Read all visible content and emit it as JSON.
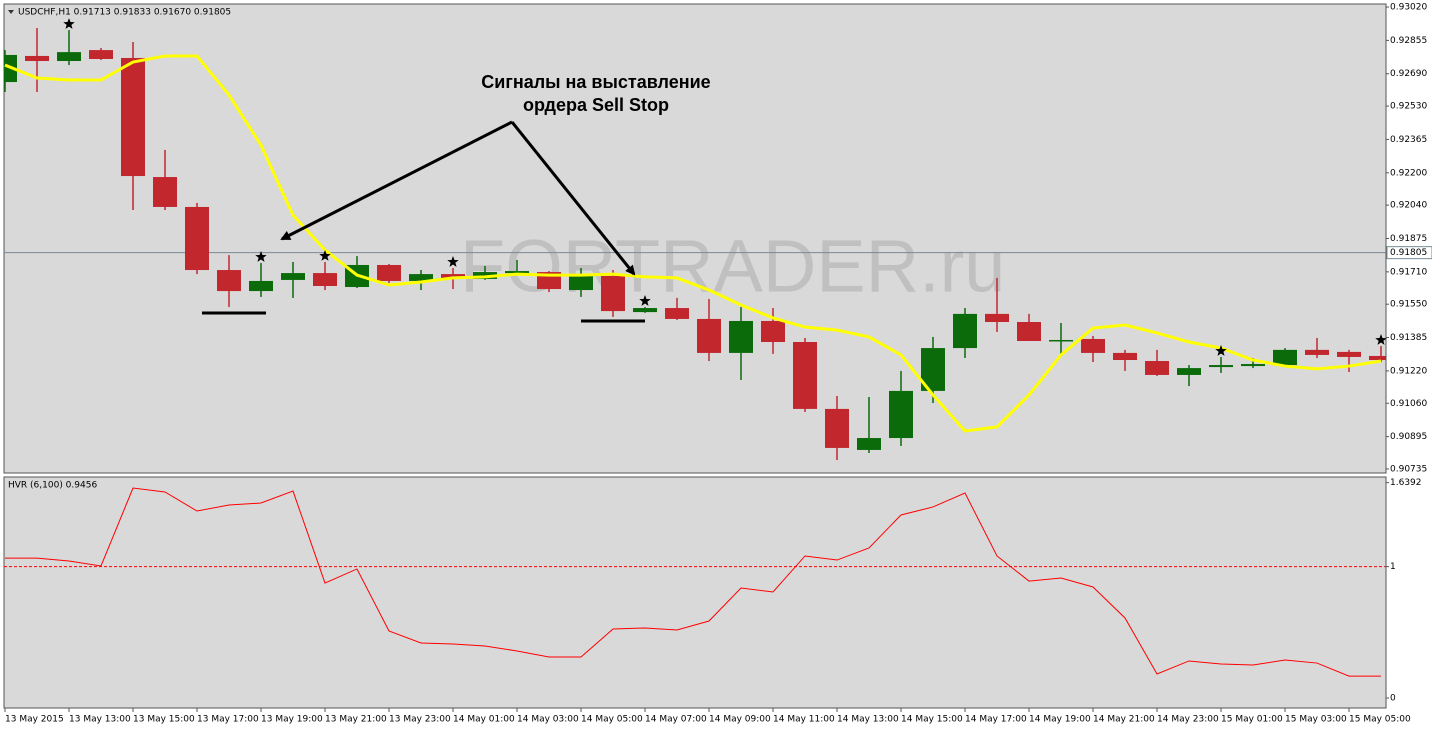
{
  "chart_data": [
    {
      "type": "candlestick",
      "title": "USDCHF,H1  0.91713 0.91833 0.91670 0.91805",
      "watermark": "FORTRADER.ru",
      "annotation": [
        "Сигналы на выставление",
        "ордера Sell Stop"
      ],
      "categories": [
        "13 May 2015",
        null,
        "13 May 13:00",
        null,
        "13 May 15:00",
        null,
        "13 May 17:00",
        null,
        "13 May 19:00",
        null,
        "13 May 21:00",
        null,
        "13 May 23:00",
        null,
        "14 May 01:00",
        null,
        "14 May 03:00",
        null,
        "14 May 05:00",
        null,
        "14 May 07:00",
        null,
        "14 May 09:00",
        null,
        "14 May 11:00",
        null,
        "14 May 13:00",
        null,
        "14 May 15:00",
        null,
        "14 May 17:00",
        null,
        "14 May 19:00",
        null,
        "14 May 21:00",
        null,
        "14 May 23:00",
        null,
        "15 May 01:00",
        null,
        "15 May 03:00",
        null,
        "15 May 05:00",
        null
      ],
      "open": [
        0.92649,
        0.92778,
        0.92753,
        0.92807,
        0.92768,
        0.92179,
        0.92031,
        0.91719,
        0.91615,
        0.9167,
        0.91704,
        0.91635,
        0.91744,
        0.91665,
        0.91699,
        0.91675,
        0.91704,
        0.91709,
        0.9162,
        0.9169,
        0.91511,
        0.91531,
        0.91477,
        0.91309,
        0.91467,
        0.91363,
        0.91032,
        0.90829,
        0.90888,
        0.91121,
        0.91333,
        0.91502,
        0.91462,
        0.91368,
        0.91378,
        0.91309,
        0.91269,
        0.912,
        0.91239,
        0.91244,
        0.91249,
        0.91324,
        0.91314,
        0.91294
      ],
      "high": [
        0.92807,
        0.92916,
        0.92906,
        0.92817,
        0.92847,
        0.92313,
        0.92051,
        0.91793,
        0.91754,
        0.91759,
        0.91759,
        0.91788,
        0.91749,
        0.91719,
        0.91729,
        0.91739,
        0.91769,
        0.91714,
        0.91729,
        0.91719,
        0.91536,
        0.91581,
        0.91576,
        0.91536,
        0.91531,
        0.91383,
        0.91096,
        0.91091,
        0.9122,
        0.91388,
        0.91531,
        0.9168,
        0.91502,
        0.91457,
        0.91393,
        0.91324,
        0.91324,
        0.91249,
        0.91289,
        0.91284,
        0.91333,
        0.91383,
        0.91324,
        0.91343
      ],
      "low": [
        0.926,
        0.926,
        0.92733,
        0.92758,
        0.92016,
        0.92016,
        0.91699,
        0.91536,
        0.91586,
        0.91581,
        0.9162,
        0.9163,
        0.91655,
        0.9162,
        0.91625,
        0.9167,
        0.91694,
        0.9161,
        0.91586,
        0.91487,
        0.91507,
        0.91472,
        0.91269,
        0.91175,
        0.91304,
        0.91017,
        0.90779,
        0.90814,
        0.90849,
        0.91061,
        0.91284,
        0.91413,
        0.91368,
        0.91299,
        0.91264,
        0.9122,
        0.91195,
        0.91145,
        0.9121,
        0.91234,
        0.91239,
        0.91284,
        0.91215,
        0.91264
      ],
      "close": [
        0.92783,
        0.92753,
        0.92797,
        0.92763,
        0.92184,
        0.92031,
        0.91719,
        0.91615,
        0.91665,
        0.91704,
        0.9164,
        0.91744,
        0.91665,
        0.91699,
        0.91675,
        0.91709,
        0.91714,
        0.91625,
        0.9169,
        0.91516,
        0.91531,
        0.91477,
        0.91309,
        0.91467,
        0.91363,
        0.91032,
        0.90839,
        0.90888,
        0.91121,
        0.91333,
        0.91502,
        0.91462,
        0.91368,
        0.91373,
        0.91309,
        0.91274,
        0.912,
        0.91234,
        0.91249,
        0.91254,
        0.91324,
        0.91299,
        0.91289,
        0.91274
      ],
      "up_color": "#0b6b0b",
      "down_color": "#c1272d",
      "ma": {
        "color": "#ffff00",
        "values": [
          0.92733,
          0.92669,
          0.92659,
          0.92659,
          0.92748,
          0.92778,
          0.92778,
          0.92585,
          0.92337,
          0.91991,
          0.91818,
          0.91694,
          0.91645,
          0.9166,
          0.9168,
          0.91685,
          0.91699,
          0.91694,
          0.91694,
          0.91699,
          0.91685,
          0.9168,
          0.9162,
          0.91546,
          0.91482,
          0.91437,
          0.91422,
          0.91388,
          0.91299,
          0.91101,
          0.90923,
          0.90943,
          0.91101,
          0.91299,
          0.91432,
          0.91447,
          0.91408,
          0.91363,
          0.91333,
          0.91274,
          0.91244,
          0.9123,
          0.91244,
          0.91269
        ]
      },
      "signals": [
        2,
        8,
        10,
        14,
        20,
        38,
        43
      ],
      "last_price": 0.91805,
      "ylim": [
        0.90715,
        0.93035
      ],
      "yticks": [
        {
          "value": 0.9302,
          "label": "0.93020"
        },
        0.92855,
        {
          "value": 0.9269,
          "label": "0.92690"
        },
        {
          "value": 0.9253,
          "label": "0.92530"
        },
        0.92365,
        {
          "value": 0.922,
          "label": "0.92200"
        },
        {
          "value": 0.9204,
          "label": "0.92040"
        },
        0.91875,
        {
          "value": 0.9171,
          "label": "0.91710"
        },
        {
          "value": 0.9155,
          "label": "0.91550"
        },
        0.91385,
        {
          "value": 0.9122,
          "label": "0.91220"
        },
        {
          "value": 0.9106,
          "label": "0.91060"
        },
        0.90895,
        0.90735
      ]
    },
    {
      "type": "line",
      "title": "HVR (6,100) 0.9456",
      "series": [
        {
          "color": "#ff0000",
          "values": [
            1.065,
            1.065,
            1.043,
            1.005,
            1.598,
            1.568,
            1.423,
            1.469,
            1.484,
            1.575,
            0.875,
            0.982,
            0.51,
            0.419,
            0.411,
            0.396,
            0.358,
            0.312,
            0.312,
            0.525,
            0.533,
            0.518,
            0.586,
            0.837,
            0.807,
            1.081,
            1.05,
            1.142,
            1.393,
            1.454,
            1.56,
            1.081,
            0.89,
            0.913,
            0.845,
            0.609,
            0.183,
            0.282,
            0.259,
            0.251,
            0.289,
            0.266,
            0.167,
            0.167
          ]
        }
      ],
      "levels": [
        1
      ],
      "ylim": [
        -0.076,
        1.682
      ],
      "yticks": [
        0,
        1,
        1.6392
      ]
    }
  ]
}
